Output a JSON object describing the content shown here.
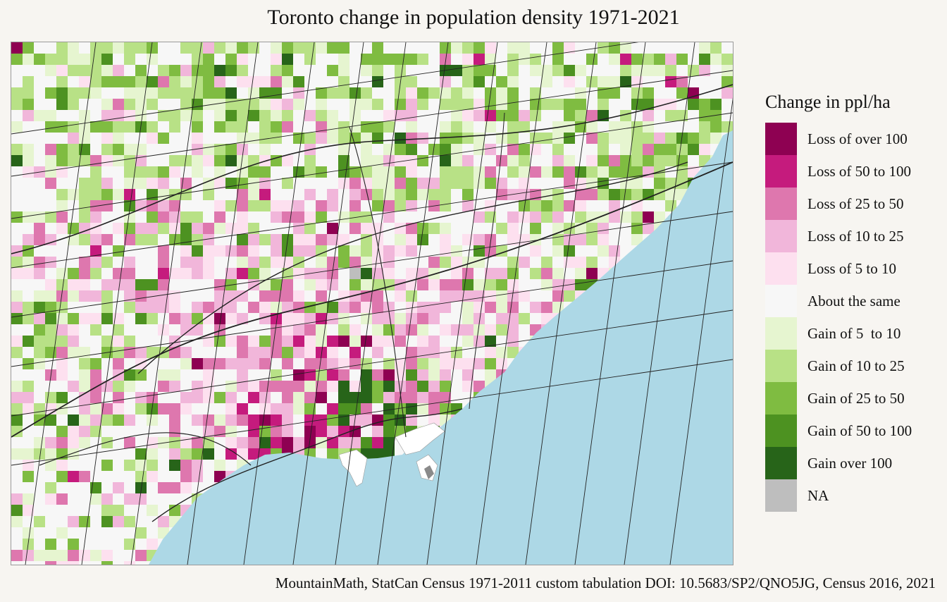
{
  "title": "Toronto change in population density 1971-2021",
  "caption": "MountainMath, StatCan Census 1971-2011 custom tabulation DOI: 10.5683/SP2/QNO5JG, Census 2016, 2021",
  "legend": {
    "title": "Change in ppl/ha",
    "items": [
      {
        "label": "Loss of over 100",
        "color": "#8e0152"
      },
      {
        "label": "Loss of 50 to 100",
        "color": "#c51b7d"
      },
      {
        "label": "Loss of 25 to 50",
        "color": "#de77ae"
      },
      {
        "label": "Loss of 10 to 25",
        "color": "#f1b6da"
      },
      {
        "label": "Loss of 5 to 10",
        "color": "#fde0ef"
      },
      {
        "label": "About the same",
        "color": "#f7f7f7"
      },
      {
        "label": "Gain of 5  to 10",
        "color": "#e6f5d0"
      },
      {
        "label": "Gain of 10 to 25",
        "color": "#b8e186"
      },
      {
        "label": "Gain of 25 to 50",
        "color": "#7fbc41"
      },
      {
        "label": "Gain of 50 to 100",
        "color": "#4d9221"
      },
      {
        "label": "Gain over 100",
        "color": "#276419"
      },
      {
        "label": "NA",
        "color": "#bebebe"
      }
    ]
  },
  "map": {
    "water_color": "#add8e6",
    "road_color": "#222222"
  }
}
